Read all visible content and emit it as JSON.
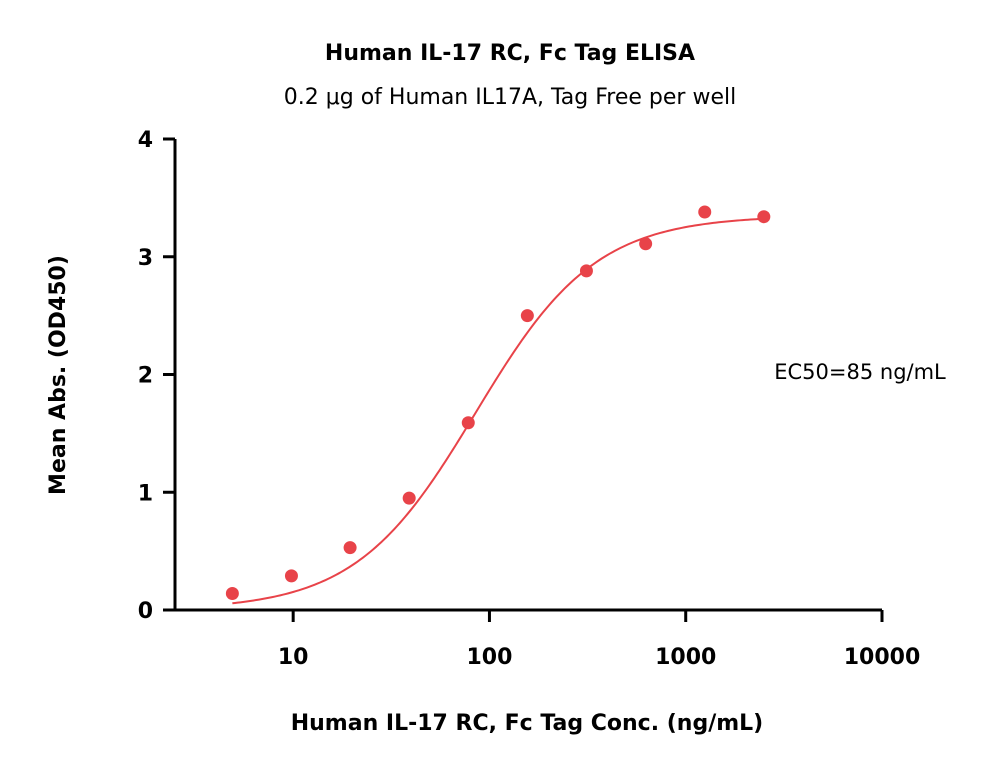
{
  "chart_data": {
    "type": "scatter",
    "title": "Human IL-17 RC, Fc Tag ELISA",
    "subtitle": "0.2 μg of Human IL17A, Tag Free per well",
    "xlabel": "Human IL-17 RC, Fc Tag Conc. (ng/mL)",
    "ylabel": "Mean Abs. (OD450)",
    "x_scale": "log",
    "xlim": [
      2.5,
      10000
    ],
    "ylim": [
      0,
      4
    ],
    "x_ticks": [
      10,
      100,
      1000,
      10000
    ],
    "x_tick_labels": [
      "10",
      "100",
      "1000",
      "10000"
    ],
    "y_ticks": [
      0,
      1,
      2,
      3,
      4
    ],
    "y_tick_labels": [
      "0",
      "1",
      "2",
      "3",
      "4"
    ],
    "grid": false,
    "legend": "none",
    "annotation": "EC50=85 ng/mL",
    "series": [
      {
        "color": "#e84349",
        "points": [
          {
            "x": 4.9,
            "y": 0.14
          },
          {
            "x": 9.8,
            "y": 0.29
          },
          {
            "x": 19.5,
            "y": 0.53
          },
          {
            "x": 39,
            "y": 0.95
          },
          {
            "x": 78,
            "y": 1.59
          },
          {
            "x": 156,
            "y": 2.5
          },
          {
            "x": 312,
            "y": 2.88
          },
          {
            "x": 625,
            "y": 3.11
          },
          {
            "x": 1250,
            "y": 3.38
          },
          {
            "x": 2500,
            "y": 3.34
          }
        ]
      }
    ],
    "fit_curve": {
      "model": "4PL",
      "bottom": 0.0,
      "top": 3.35,
      "ec50": 85,
      "hill": 1.42,
      "color": "#e84349"
    }
  }
}
